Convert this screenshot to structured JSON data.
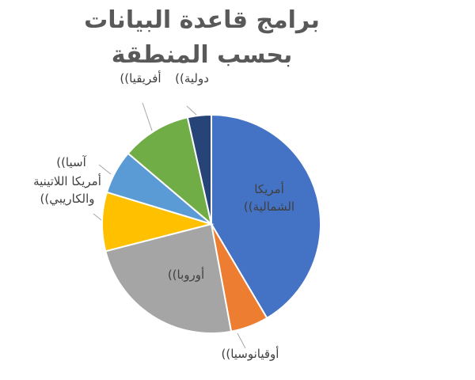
{
  "chart_data": {
    "type": "pie",
    "title": "برامج قاعدة البيانات بحسب المنطقة",
    "categories": [
      "أمريكا الشمالية))",
      "أوقيانوسيا))",
      "أوروبا))",
      "أمريكا اللاتينية والكاريبي))",
      "آسيا))",
      "أفريقيا))",
      "دولية))"
    ],
    "values": [
      41.5,
      5.6,
      23.9,
      8.7,
      6.5,
      10.3,
      3.5
    ],
    "colors": [
      "#4472c4",
      "#ed7d31",
      "#a5a5a5",
      "#ffc000",
      "#5b9bd5",
      "#70ad47",
      "#264478"
    ]
  }
}
